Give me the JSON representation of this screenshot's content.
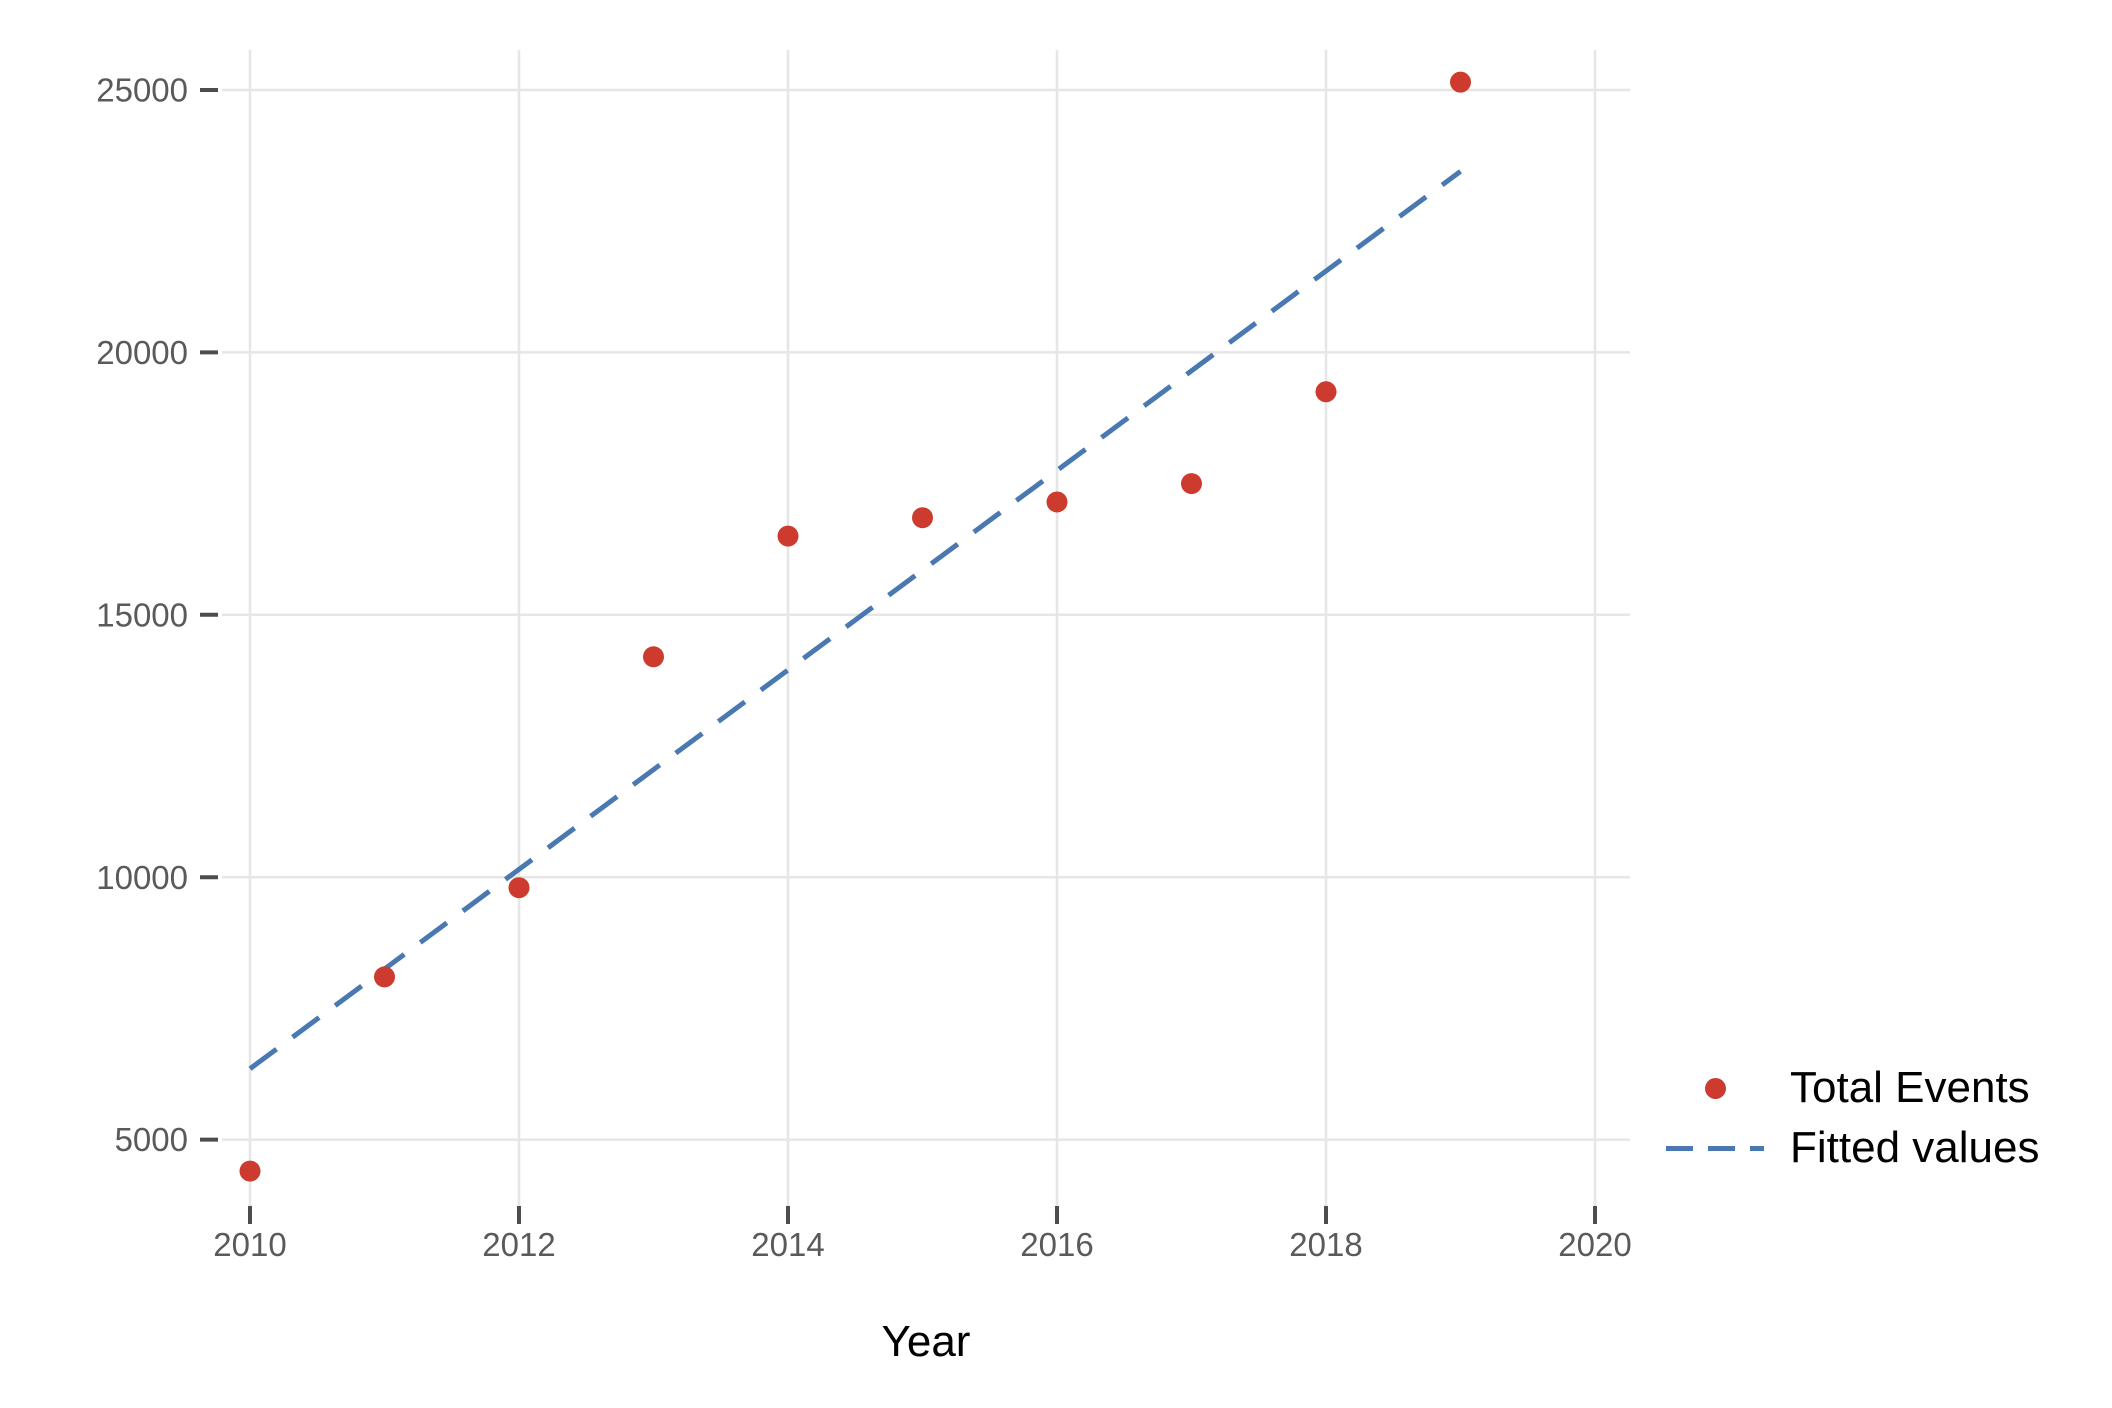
{
  "chart_data": {
    "type": "scatter",
    "title": "",
    "xlabel": "Year",
    "ylabel": "",
    "x_ticks": [
      2010,
      2012,
      2014,
      2016,
      2018,
      2020
    ],
    "y_ticks": [
      5000,
      10000,
      15000,
      20000,
      25000
    ],
    "xlim": [
      2009.8,
      2020.3
    ],
    "ylim": [
      3700,
      25800
    ],
    "grid": true,
    "legend_position": "outside-right-bottom",
    "colors": {
      "background": "#ffffff",
      "gridline": "#e6e6e6",
      "tick_mark": "#4d4d4d",
      "tick_label": "#5a5a5a",
      "scatter": "#cc3b2e",
      "fitted_line": "#4a79b2",
      "legend_text": "#000000"
    },
    "series": [
      {
        "name": "Total Events",
        "kind": "scatter",
        "color": "#cc3b2e",
        "x": [
          2010,
          2011,
          2012,
          2013,
          2014,
          2015,
          2016,
          2017,
          2018,
          2019
        ],
        "y": [
          4400,
          8100,
          9800,
          14200,
          16500,
          16850,
          17150,
          17500,
          19250,
          25150
        ]
      },
      {
        "name": "Fitted values",
        "kind": "dashed-line",
        "color": "#4a79b2",
        "x": [
          2010,
          2019
        ],
        "y": [
          6350,
          23450
        ]
      }
    ]
  }
}
